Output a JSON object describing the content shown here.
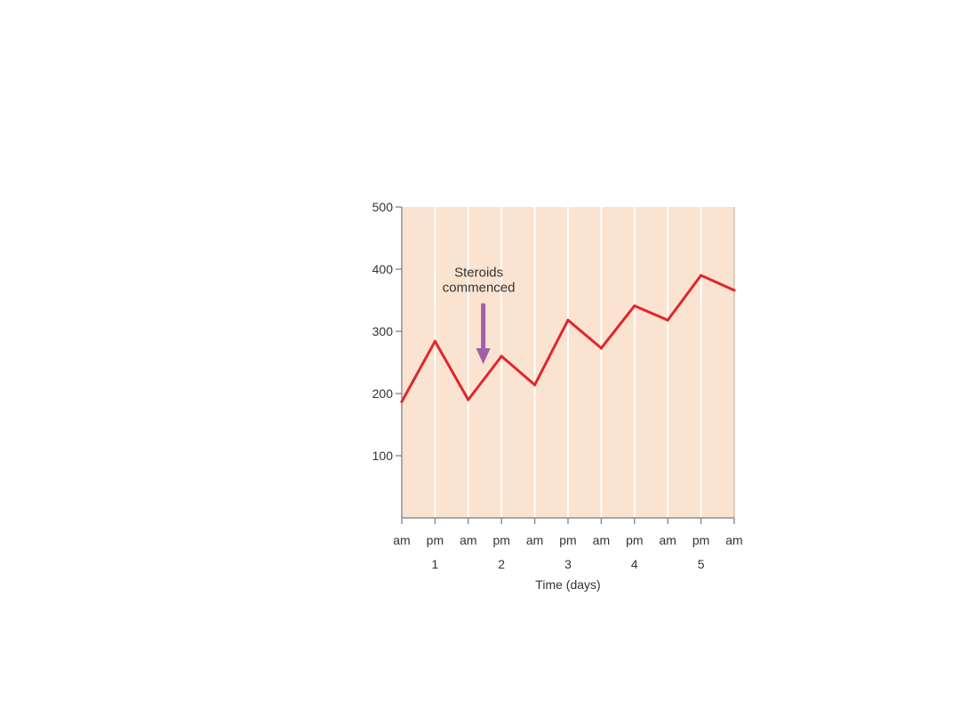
{
  "chart_data": {
    "type": "line",
    "x_tick_labels": [
      "am",
      "pm",
      "am",
      "pm",
      "am",
      "pm",
      "am",
      "pm",
      "am",
      "pm",
      "am"
    ],
    "day_labels": [
      "1",
      "2",
      "3",
      "4",
      "5"
    ],
    "day_label_positions": [
      1,
      3,
      5,
      7,
      9
    ],
    "xlabel": "Time (days)",
    "ylabel": "",
    "ylim": [
      0,
      500
    ],
    "y_ticks": [
      100,
      200,
      300,
      400,
      500
    ],
    "series": [
      {
        "color": "#e0262c",
        "values": [
          187,
          284,
          190,
          260,
          214,
          318,
          273,
          341,
          318,
          390,
          366
        ]
      }
    ],
    "annotations": [
      {
        "text_lines": [
          "Steroids",
          "commenced"
        ],
        "arrow_x_index": 2.45,
        "arrow_from_value": 345,
        "arrow_to_value": 250,
        "arrow_color": "#a35fa6"
      }
    ],
    "colors": {
      "plot_background": "#fae3d0",
      "gridline": "#ffffff",
      "axis": "#7a7a7a",
      "text": "#333333"
    },
    "grid": true
  }
}
